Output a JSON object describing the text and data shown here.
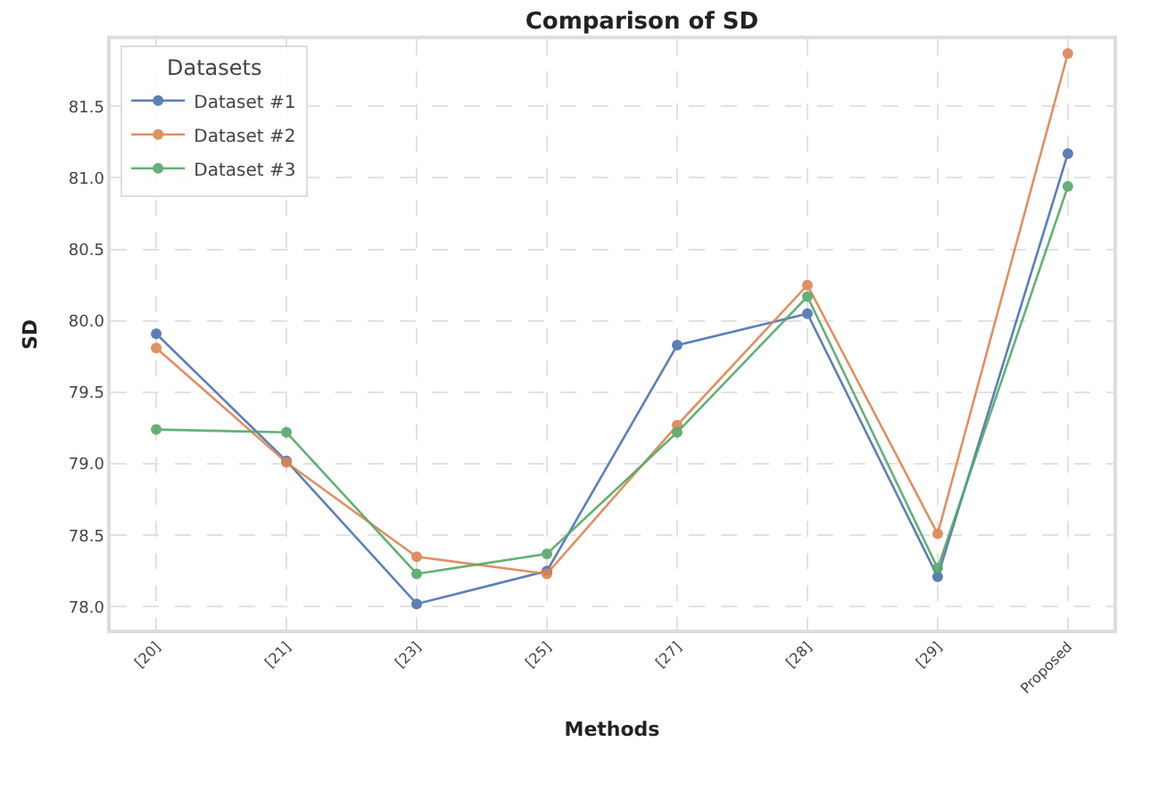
{
  "chart_data": {
    "type": "line",
    "title": "Comparison of SD",
    "xlabel": "Methods",
    "ylabel": "SD",
    "legend_title": "Datasets",
    "categories": [
      "[20]",
      "[21]",
      "[23]",
      "[25]",
      "[27]",
      "[28]",
      "[29]",
      "Proposed"
    ],
    "series": [
      {
        "name": "Dataset #1",
        "color": "#4c72b0",
        "values": [
          79.91,
          79.02,
          78.02,
          78.25,
          79.83,
          80.05,
          78.21,
          81.17
        ]
      },
      {
        "name": "Dataset #2",
        "color": "#dd8452",
        "values": [
          79.81,
          79.01,
          78.35,
          78.23,
          79.27,
          80.25,
          78.51,
          81.87
        ]
      },
      {
        "name": "Dataset #3",
        "color": "#55a868",
        "values": [
          79.24,
          79.22,
          78.23,
          78.37,
          79.22,
          80.17,
          78.27,
          80.94
        ]
      }
    ],
    "ylim": [
      77.84,
      81.97
    ],
    "yticks": [
      {
        "value": 78,
        "label": "78.0"
      },
      78.5,
      {
        "value": 79,
        "label": "79.0"
      },
      79.5,
      {
        "value": 80,
        "label": "80.0"
      },
      80.5,
      {
        "value": 81,
        "label": "81.0"
      },
      81.5
    ],
    "grid": true,
    "legend": "top left",
    "marker": "circle",
    "line_style": "solid"
  }
}
